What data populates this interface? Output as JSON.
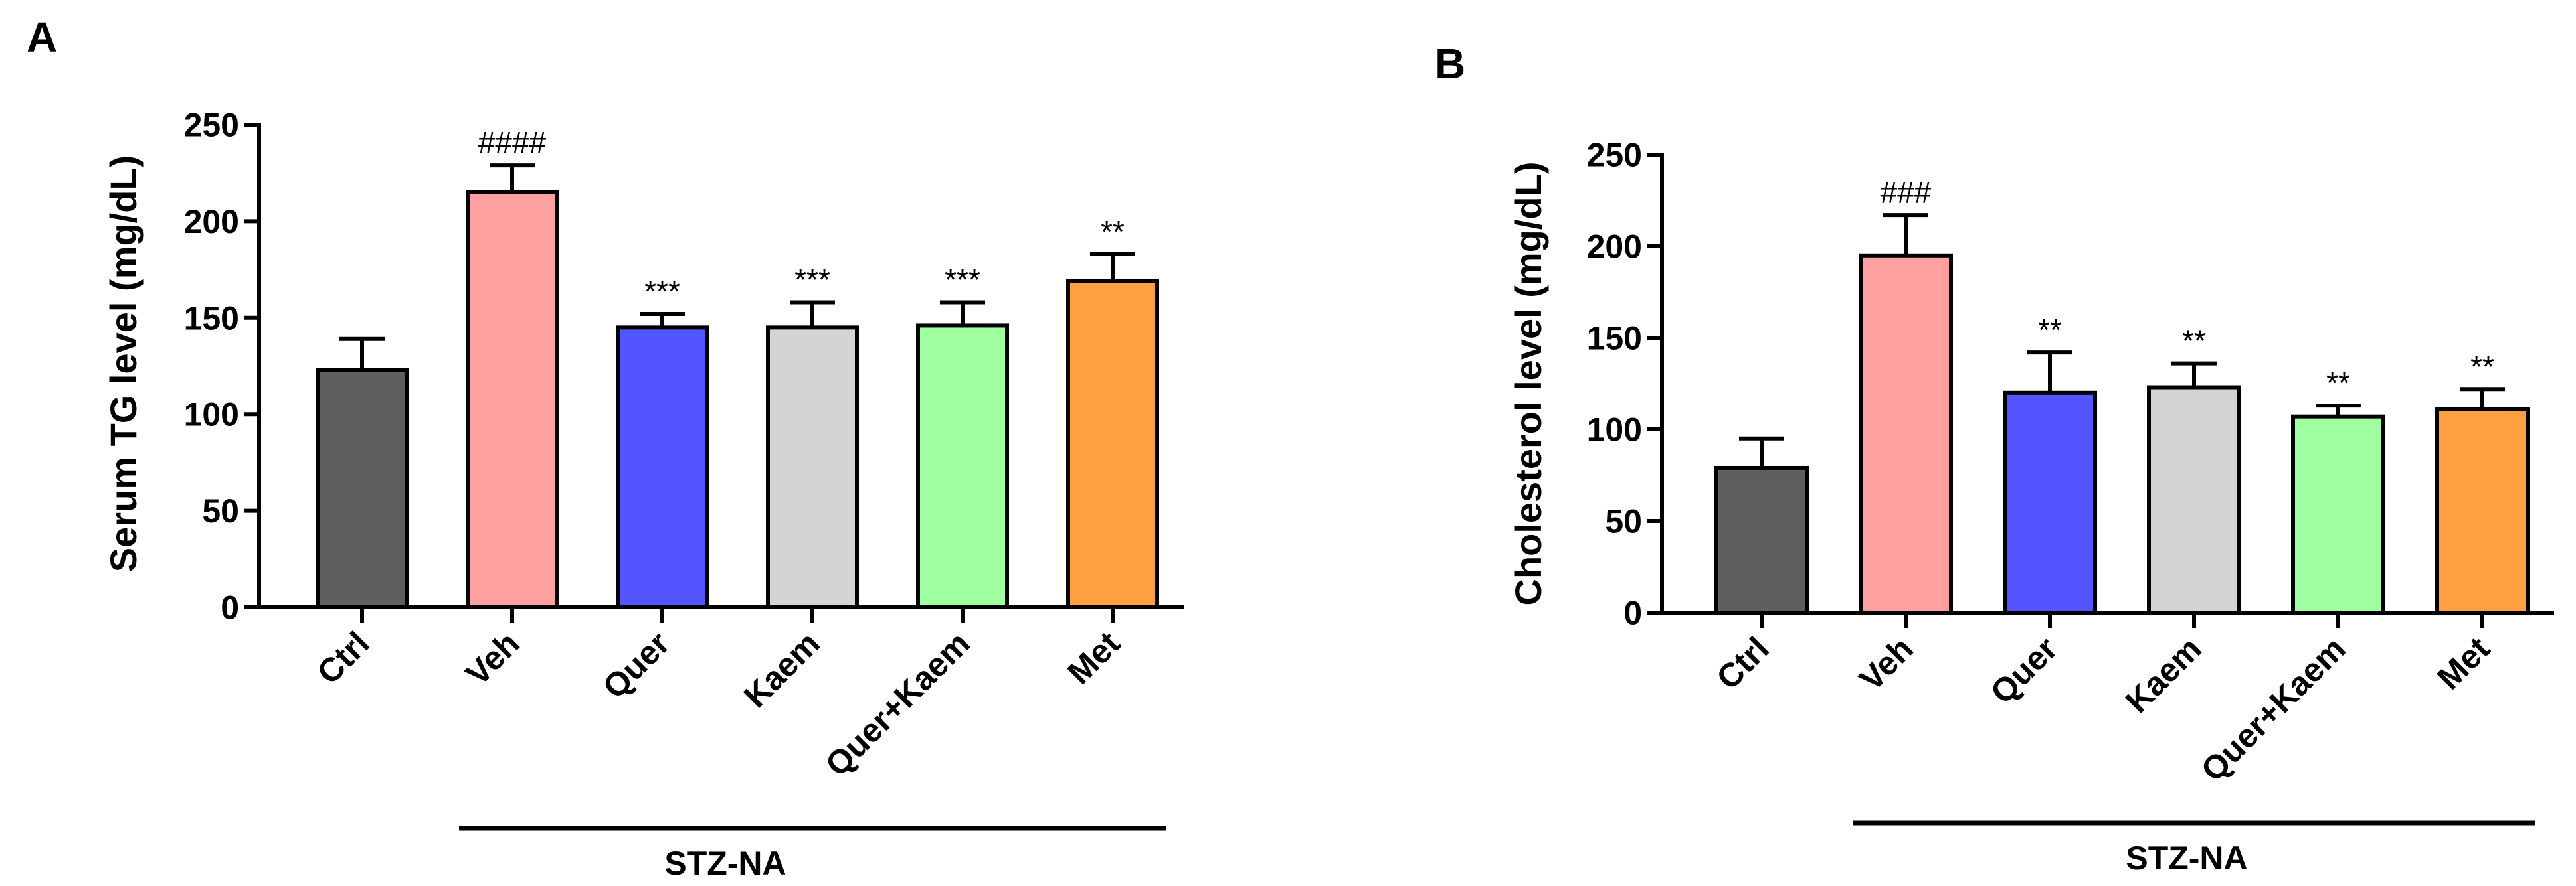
{
  "chart_data": [
    {
      "type": "bar",
      "panel_label": "A",
      "title": "",
      "xlabel": "",
      "ylabel": "Serum TG level (mg/dL)",
      "ylim": [
        0,
        250
      ],
      "yticks": [
        "0",
        "50",
        "100",
        "150",
        "200",
        "250"
      ],
      "categories": [
        "Ctrl",
        "Veh",
        "Quer",
        "Kaem",
        "Quer+Kaem",
        "Met"
      ],
      "values": [
        123,
        215,
        145,
        145,
        146,
        169
      ],
      "errors": [
        16,
        14,
        7,
        13,
        12,
        14
      ],
      "significance": [
        "",
        "####",
        "***",
        "***",
        "***",
        "**"
      ],
      "colors": [
        "#5f5f5f",
        "#ffa0a0",
        "#5555ff",
        "#d4d4d4",
        "#a0ffa0",
        "#ffa040"
      ],
      "group_label": "STZ-NA",
      "group_span": [
        "Veh",
        "Met"
      ],
      "grid": false
    },
    {
      "type": "bar",
      "panel_label": "B",
      "title": "",
      "xlabel": "",
      "ylabel": "Cholesterol level (mg/dL)",
      "ylim": [
        0,
        250
      ],
      "yticks": [
        "0",
        "50",
        "100",
        "150",
        "200",
        "250"
      ],
      "categories": [
        "Ctrl",
        "Veh",
        "Quer",
        "Kaem",
        "Quer+Kaem",
        "Met"
      ],
      "values": [
        79,
        195,
        120,
        123,
        107,
        111
      ],
      "errors": [
        16,
        22,
        22,
        13,
        6,
        11
      ],
      "significance": [
        "",
        "###",
        "**",
        "**",
        "**",
        "**"
      ],
      "colors": [
        "#5f5f5f",
        "#ffa0a0",
        "#5555ff",
        "#d4d4d4",
        "#a0ffa0",
        "#ffa040"
      ],
      "group_label": "STZ-NA",
      "group_span": [
        "Veh",
        "Met"
      ],
      "grid": false
    }
  ]
}
